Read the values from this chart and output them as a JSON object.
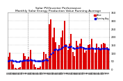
{
  "title": "Solar PV/Inverter Performance\nMonthly Solar Energy Production Value Running Average",
  "title_fontsize": 3.2,
  "bar_color": "#dd0000",
  "avg_color": "#0000dd",
  "bg_color": "#ffffff",
  "plot_bg": "#ffffff",
  "grid_color": "#888888",
  "ylim": [
    0,
    350
  ],
  "yticks": [
    0,
    50,
    100,
    150,
    200,
    250,
    300,
    350
  ],
  "ylabel_fontsize": 2.8,
  "xlabel_fontsize": 2.5,
  "bar_values": [
    80,
    105,
    55,
    30,
    12,
    8,
    10,
    15,
    55,
    100,
    85,
    65,
    80,
    120,
    58,
    32,
    14,
    10,
    12,
    18,
    60,
    110,
    95,
    70,
    280,
    310,
    200,
    260,
    170,
    120,
    150,
    200,
    240,
    300,
    155,
    120,
    160,
    220,
    110,
    85,
    175,
    145,
    160,
    190,
    140,
    105,
    115,
    150,
    155,
    190,
    135,
    105,
    160,
    140,
    130,
    155,
    165,
    160,
    140,
    125
  ],
  "avg_values": [
    55,
    58,
    56,
    54,
    52,
    50,
    50,
    51,
    53,
    56,
    58,
    57,
    58,
    60,
    58,
    56,
    54,
    52,
    52,
    53,
    55,
    58,
    60,
    59,
    80,
    95,
    105,
    120,
    125,
    123,
    125,
    130,
    138,
    148,
    145,
    140,
    138,
    142,
    135,
    130,
    135,
    135,
    137,
    140,
    135,
    130,
    128,
    130,
    130,
    133,
    130,
    128,
    130,
    128,
    127,
    128,
    130,
    132,
    128,
    125
  ],
  "n_bars": 60,
  "x_tick_labels": [
    "01",
    "02",
    "03",
    "04",
    "05",
    "06",
    "07",
    "08",
    "09",
    "10",
    "11",
    "12",
    "01",
    "02",
    "03",
    "04",
    "05",
    "06",
    "07",
    "08",
    "09",
    "10",
    "11",
    "12",
    "01",
    "02",
    "03",
    "04",
    "05",
    "06",
    "07",
    "08",
    "09",
    "10",
    "11",
    "12",
    "01",
    "02",
    "03",
    "04",
    "05",
    "06",
    "07",
    "08",
    "09",
    "10",
    "11",
    "12",
    "01",
    "02",
    "03",
    "04",
    "05",
    "06",
    "07",
    "08",
    "09",
    "10",
    "11",
    "12"
  ],
  "legend_value_label": "Value",
  "legend_avg_label": "Running Avg"
}
